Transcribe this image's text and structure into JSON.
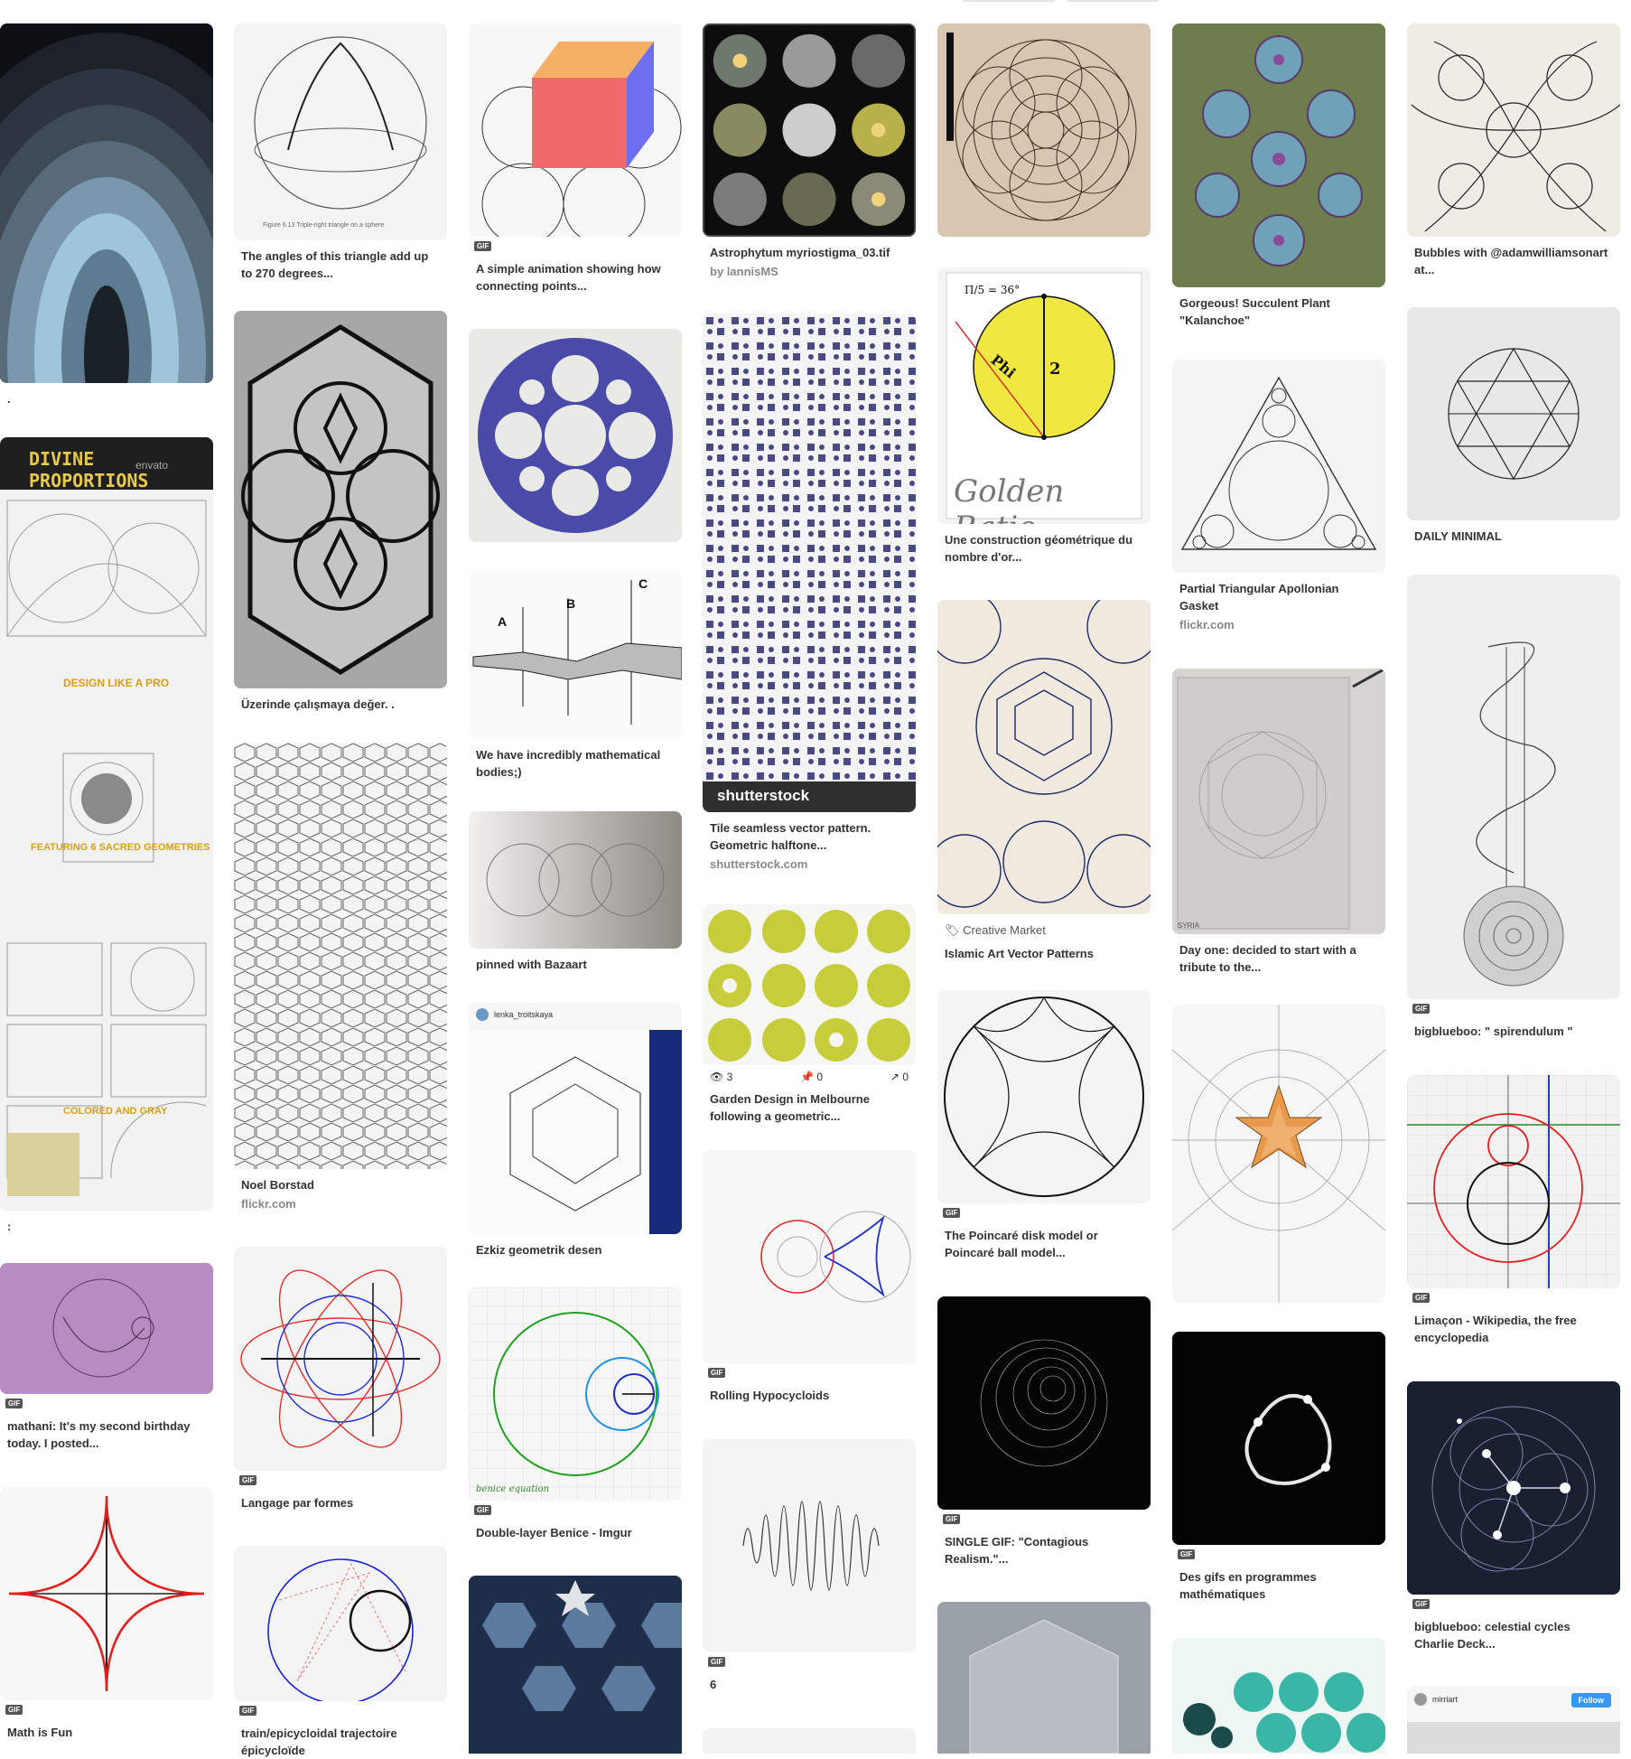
{
  "pins": {
    "c1p1": {
      "caption": "."
    },
    "c1p2": {
      "caption": ":",
      "header": "DIVINE PROPORTIONS",
      "sub1": "DESIGN LIKE A PRO",
      "sub2": "FEATURING 6 SACRED GEOMETRIES",
      "sub3": "COLORED AND GRAY",
      "watermark": "envato"
    },
    "c1p3": {
      "badge": "GIF",
      "caption": "mathani: It's my second birthday today. I posted..."
    },
    "c1p4": {
      "badge": "GIF",
      "caption": "Math is Fun"
    },
    "c2p1": {
      "caption": "The angles of this triangle add up to 270 degrees...",
      "figure": "Figure 6.13    Triple-right triangle on a sphere"
    },
    "c2p2": {
      "caption": "Üzerinde çalışmaya değer. ."
    },
    "c2p3": {
      "caption": "Noel Borstad",
      "source": "flickr.com"
    },
    "c2p4": {
      "badge": "GIF",
      "caption": "Langage par formes"
    },
    "c2p5": {
      "badge": "GIF",
      "caption": "train/epicycloidal trajectoire épicycloïde"
    },
    "c3p1": {
      "badge": "GIF",
      "caption": "A simple animation showing how connecting points..."
    },
    "c3p2": {},
    "c3p3": {
      "caption": "We have incredibly mathematical bodies;)",
      "labels": [
        "A",
        "B",
        "C"
      ]
    },
    "c3p4": {
      "caption": "pinned with Bazaart"
    },
    "c3p5": {
      "caption": "Ezkiz geometrik desen",
      "user": "lenka_troitskaya"
    },
    "c3p6": {
      "badge": "GIF",
      "caption": "Double-layer Benice - Imgur",
      "overlay": "benice equation"
    },
    "c3p7": {},
    "c4p1": {
      "caption": "Astrophytum myriostigma_03.tif",
      "source": "by lannisMS"
    },
    "c4p2": {
      "caption": "Tile seamless vector pattern. Geometric halftone...",
      "source": "shutterstock.com",
      "overlay": "shutterstock"
    },
    "c4p3": {
      "caption": "Garden Design in Melbourne following a geometric...",
      "stat_views": "3",
      "stat_pins": "0",
      "stat_shares": "0"
    },
    "c4p4": {
      "badge": "GIF",
      "caption": "Rolling Hypocycloids"
    },
    "c4p5": {
      "badge": "GIF",
      "caption": "6"
    },
    "c4p6": {},
    "c5p1": {},
    "c5p2": {
      "caption": "Une construction géométrique du nombre d'or...",
      "title": "Golden Ratio",
      "label_pi": "Π/5 = 36°",
      "label_phi": "Phi",
      "label_two": "2"
    },
    "c5p3": {
      "market": "Creative Market",
      "caption": "Islamic Art Vector Patterns"
    },
    "c5p4": {
      "badge": "GIF",
      "caption": "The Poincaré disk model or Poincaré ball model..."
    },
    "c5p5": {
      "badge": "GIF",
      "caption": "SINGLE GIF: \"Contagious Realism.\"..."
    },
    "c5p6": {},
    "c6p1": {
      "caption": "Gorgeous! Succulent Plant \"Kalanchoe\""
    },
    "c6p2": {
      "caption": "Partial Triangular Apollonian Gasket",
      "source": "flickr.com"
    },
    "c6p3": {
      "caption": "Day one: decided to start with a tribute to the...",
      "overlay": "SYRIA"
    },
    "c6p4": {},
    "c6p5": {
      "badge": "GIF",
      "caption": "Des gifs en programmes mathématiques"
    },
    "c6p6": {},
    "c7p1": {
      "caption": "Bubbles with @adamwilliamsonart at..."
    },
    "c7p2": {
      "caption": "DAILY MINIMAL"
    },
    "c7p3": {
      "badge": "GIF",
      "caption": "bigblueboo: \" spirendulum \""
    },
    "c7p4": {
      "badge": "GIF",
      "caption": "Limaçon - Wikipedia, the free encyclopedia"
    },
    "c7p5": {
      "badge": "GIF",
      "caption": "bigblueboo: celestial cycles Charlie Deck..."
    },
    "c7p6": {
      "user": "mirriart",
      "follow": "Follow"
    }
  }
}
